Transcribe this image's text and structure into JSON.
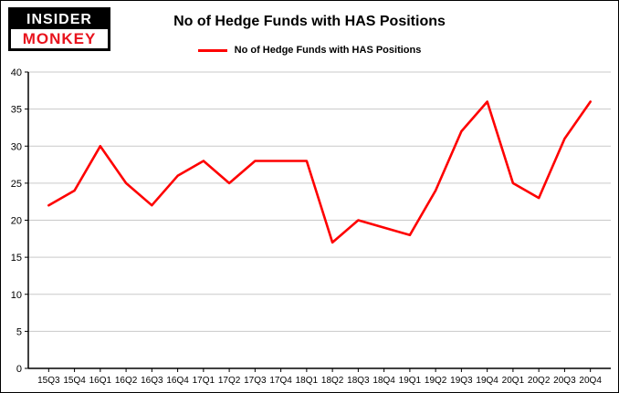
{
  "logo": {
    "line1": "INSIDER",
    "line2": "MONKEY"
  },
  "title": "No of Hedge Funds with HAS Positions",
  "legend": {
    "label": "No of Hedge Funds with HAS Positions",
    "color": "#fe0000"
  },
  "chart_data": {
    "type": "line",
    "title": "No of Hedge Funds with HAS Positions",
    "categories": [
      "15Q3",
      "15Q4",
      "16Q1",
      "16Q2",
      "16Q3",
      "16Q4",
      "17Q1",
      "17Q2",
      "17Q3",
      "17Q4",
      "18Q1",
      "18Q2",
      "18Q3",
      "18Q4",
      "19Q1",
      "19Q2",
      "19Q3",
      "19Q4",
      "20Q1",
      "20Q2",
      "20Q3",
      "20Q4"
    ],
    "series": [
      {
        "name": "No of Hedge Funds with HAS Positions",
        "color": "#fe0000",
        "values": [
          22,
          24,
          30,
          25,
          22,
          26,
          28,
          25,
          28,
          28,
          28,
          17,
          20,
          19,
          18,
          24,
          32,
          36,
          25,
          23,
          31,
          36
        ]
      }
    ],
    "xlabel": "",
    "ylabel": "",
    "ylim": [
      0,
      40
    ],
    "ytick_step": 5,
    "grid": true,
    "grid_color": "#c9c9c9",
    "axis_color": "#000000",
    "legend_position": "top"
  }
}
